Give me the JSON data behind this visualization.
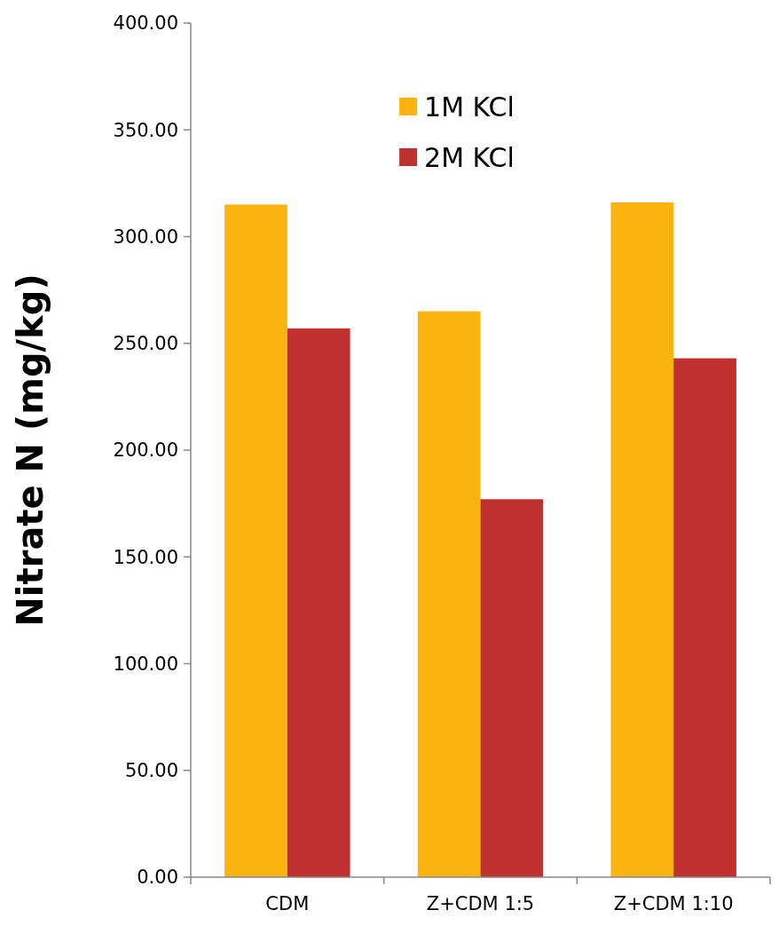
{
  "chart_data": {
    "type": "bar",
    "ylabel": "Nitrate N (mg/kg)",
    "categories": [
      "CDM",
      "Z+CDM 1:5",
      "Z+CDM 1:10"
    ],
    "series": [
      {
        "name": "1M KCl",
        "color": "#fbb30f",
        "values": [
          315,
          265,
          316
        ]
      },
      {
        "name": "2M KCl",
        "color": "#c0302f",
        "values": [
          257,
          177,
          243
        ]
      }
    ],
    "ylim": [
      0,
      400
    ],
    "yticks": [
      {
        "value": 0,
        "label": "0.00"
      },
      {
        "value": 50,
        "label": "50.00"
      },
      {
        "value": 100,
        "label": "100.00"
      },
      {
        "value": 150,
        "label": "150.00"
      },
      {
        "value": 200,
        "label": "200.00"
      },
      {
        "value": 250,
        "label": "250.00"
      },
      {
        "value": 300,
        "label": "300.00"
      },
      {
        "value": 350,
        "label": "350.00"
      },
      {
        "value": 400,
        "label": "400.00"
      }
    ],
    "grid": false,
    "legend": "top"
  }
}
